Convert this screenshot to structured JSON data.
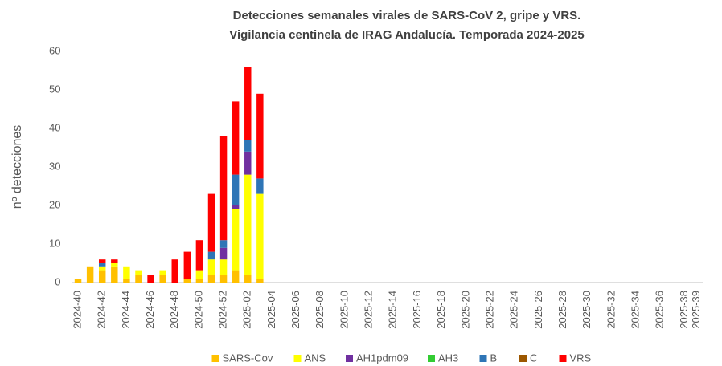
{
  "chart_data": {
    "type": "stacked_bar",
    "title": [
      "Detecciones semanales virales de SARS-CoV 2, gripe y VRS.",
      "Vigilancia centinela de IRAG Andalucía. Temporada 2024-2025"
    ],
    "y_label": "nº detecciones",
    "categories": [
      "2024-40",
      null,
      "2024-42",
      null,
      "2024-44",
      null,
      "2024-46",
      null,
      "2024-48",
      null,
      "2024-50",
      null,
      "2024-52",
      null,
      "2025-02",
      null,
      "2025-04",
      null,
      "2025-06",
      null,
      "2025-08",
      null,
      "2025-10",
      null,
      "2025-12",
      null,
      "2025-14",
      null,
      "2025-16",
      null,
      "2025-18",
      null,
      "2025-20",
      null,
      "2025-22",
      null,
      "2025-24",
      null,
      "2025-26",
      null,
      "2025-28",
      null,
      "2025-30",
      null,
      "2025-32",
      null,
      "2025-34",
      null,
      "2025-36",
      null,
      "2025-38",
      "2025-39"
    ],
    "series": [
      {
        "name": "SARS-Cov",
        "color": "#ffc000",
        "values": [
          1,
          4,
          3,
          4,
          1,
          2,
          0,
          2,
          0,
          1,
          1,
          2,
          2,
          3,
          2,
          1,
          0,
          0,
          0,
          0,
          0,
          0,
          0,
          0,
          0,
          0,
          0,
          0,
          0,
          0,
          0,
          0,
          0,
          0,
          0,
          0,
          0,
          0,
          0,
          0,
          0,
          0,
          0,
          0,
          0,
          0,
          0,
          0,
          0,
          0,
          0,
          0
        ]
      },
      {
        "name": "ANS",
        "color": "#ffff00",
        "values": [
          0,
          0,
          1,
          1,
          3,
          1,
          0,
          1,
          0,
          0,
          2,
          4,
          4,
          16,
          26,
          22,
          0,
          0,
          0,
          0,
          0,
          0,
          0,
          0,
          0,
          0,
          0,
          0,
          0,
          0,
          0,
          0,
          0,
          0,
          0,
          0,
          0,
          0,
          0,
          0,
          0,
          0,
          0,
          0,
          0,
          0,
          0,
          0,
          0,
          0,
          0,
          0
        ]
      },
      {
        "name": "AH1pdm09",
        "color": "#7030a0",
        "values": [
          0,
          0,
          0,
          0,
          0,
          0,
          0,
          0,
          0,
          0,
          0,
          0,
          3,
          1,
          6,
          0,
          0,
          0,
          0,
          0,
          0,
          0,
          0,
          0,
          0,
          0,
          0,
          0,
          0,
          0,
          0,
          0,
          0,
          0,
          0,
          0,
          0,
          0,
          0,
          0,
          0,
          0,
          0,
          0,
          0,
          0,
          0,
          0,
          0,
          0,
          0,
          0
        ]
      },
      {
        "name": "AH3",
        "color": "#33cc33",
        "values": [
          0,
          0,
          0,
          0,
          0,
          0,
          0,
          0,
          0,
          0,
          0,
          0,
          0,
          0,
          0,
          0,
          0,
          0,
          0,
          0,
          0,
          0,
          0,
          0,
          0,
          0,
          0,
          0,
          0,
          0,
          0,
          0,
          0,
          0,
          0,
          0,
          0,
          0,
          0,
          0,
          0,
          0,
          0,
          0,
          0,
          0,
          0,
          0,
          0,
          0,
          0,
          0
        ]
      },
      {
        "name": "B",
        "color": "#2e75b6",
        "values": [
          0,
          0,
          1,
          0,
          0,
          0,
          0,
          0,
          0,
          0,
          0,
          2,
          2,
          8,
          3,
          4,
          0,
          0,
          0,
          0,
          0,
          0,
          0,
          0,
          0,
          0,
          0,
          0,
          0,
          0,
          0,
          0,
          0,
          0,
          0,
          0,
          0,
          0,
          0,
          0,
          0,
          0,
          0,
          0,
          0,
          0,
          0,
          0,
          0,
          0,
          0,
          0
        ]
      },
      {
        "name": "C",
        "color": "#9c5700",
        "values": [
          0,
          0,
          0,
          0,
          0,
          0,
          0,
          0,
          0,
          0,
          0,
          0,
          0,
          0,
          0,
          0,
          0,
          0,
          0,
          0,
          0,
          0,
          0,
          0,
          0,
          0,
          0,
          0,
          0,
          0,
          0,
          0,
          0,
          0,
          0,
          0,
          0,
          0,
          0,
          0,
          0,
          0,
          0,
          0,
          0,
          0,
          0,
          0,
          0,
          0,
          0,
          0
        ]
      },
      {
        "name": "VRS",
        "color": "#ff0000",
        "values": [
          0,
          0,
          1,
          1,
          0,
          0,
          2,
          0,
          6,
          7,
          8,
          15,
          27,
          19,
          19,
          22,
          0,
          0,
          0,
          0,
          0,
          0,
          0,
          0,
          0,
          0,
          0,
          0,
          0,
          0,
          0,
          0,
          0,
          0,
          0,
          0,
          0,
          0,
          0,
          0,
          0,
          0,
          0,
          0,
          0,
          0,
          0,
          0,
          0,
          0,
          0,
          0
        ]
      }
    ],
    "ylim": [
      0,
      60
    ],
    "yticks": [
      0,
      10,
      20,
      30,
      40,
      50,
      60
    ],
    "grid": false,
    "legend": "bottom"
  }
}
